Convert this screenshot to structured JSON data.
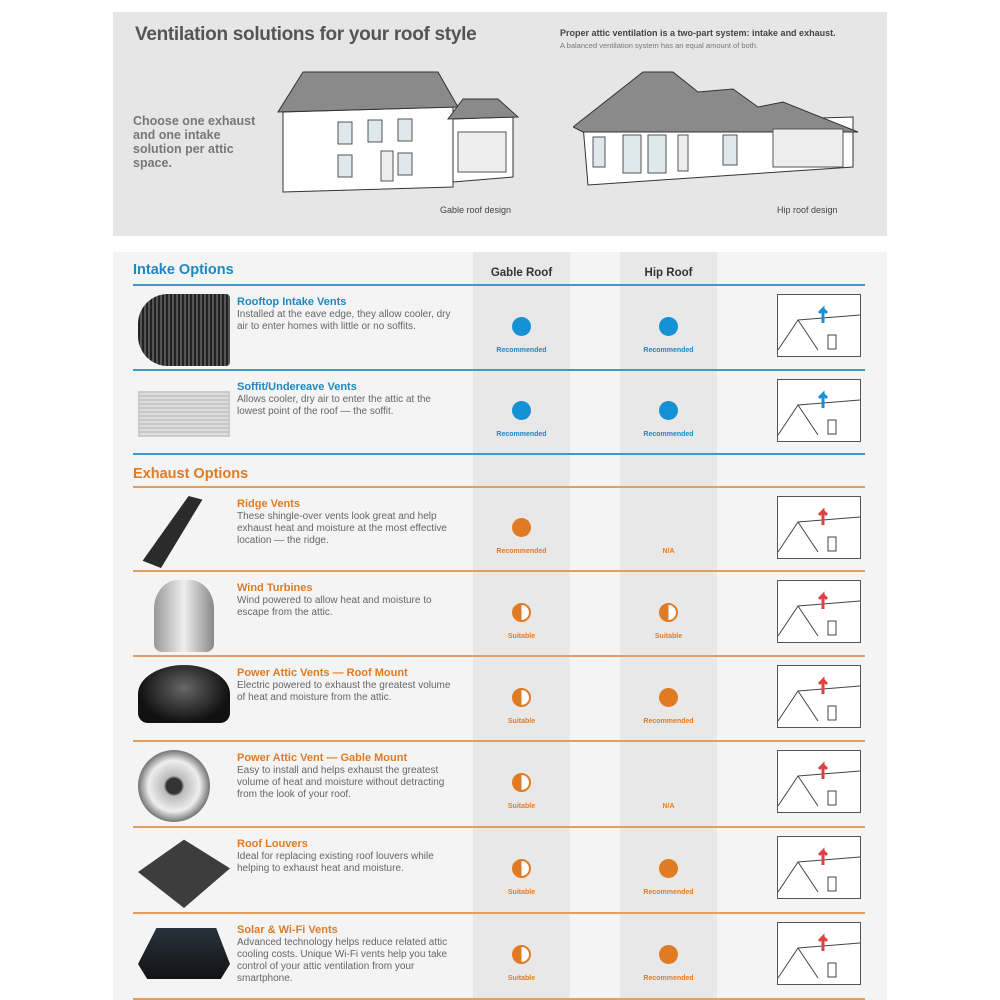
{
  "header": {
    "title": "Ventilation solutions for your roof style",
    "system_line": "Proper attic ventilation is a two-part system: intake and exhaust.",
    "balanced_line": "A balanced ventilation system has an equal amount of both.",
    "choose_text": "Choose one exhaust and one intake solution per attic space.",
    "gable_caption": "Gable roof design",
    "hip_caption": "Hip roof design"
  },
  "columns": {
    "gable": "Gable Roof",
    "hip": "Hip Roof"
  },
  "colors": {
    "intake": "#1e88bf",
    "intake_dot": "#1592d6",
    "exhaust": "#e07b24"
  },
  "intake": {
    "heading": "Intake Options",
    "rows": [
      {
        "title": "Rooftop Intake Vents",
        "desc": "Installed at the eave edge, they allow cooler, dry air to enter homes with little or no soffits.",
        "gable": "recommended",
        "gable_label": "Recommended",
        "hip": "recommended",
        "hip_label": "Recommended",
        "icon": "rooftop-intake-vent-image"
      },
      {
        "title": "Soffit/Undereave Vents",
        "desc": "Allows cooler, dry air to enter the attic at the lowest point of the roof — the soffit.",
        "gable": "recommended",
        "gable_label": "Recommended",
        "hip": "recommended",
        "hip_label": "Recommended",
        "icon": "soffit-vent-image"
      }
    ]
  },
  "exhaust": {
    "heading": "Exhaust Options",
    "rows": [
      {
        "title": "Ridge Vents",
        "desc": "These shingle-over vents look great and help exhaust heat and moisture at the most effective location — the ridge.",
        "gable": "recommended",
        "gable_label": "Recommended",
        "hip": "na",
        "hip_label": "N/A",
        "icon": "ridge-vent-image"
      },
      {
        "title": "Wind Turbines",
        "desc": "Wind powered to allow heat and moisture to escape from the attic.",
        "gable": "suitable",
        "gable_label": "Suitable",
        "hip": "suitable",
        "hip_label": "Suitable",
        "icon": "wind-turbine-image"
      },
      {
        "title": "Power Attic Vents — Roof Mount",
        "desc": "Electric powered to exhaust the greatest volume of heat and moisture from the attic.",
        "gable": "suitable",
        "gable_label": "Suitable",
        "hip": "recommended",
        "hip_label": "Recommended",
        "icon": "roof-mount-vent-image"
      },
      {
        "title": "Power Attic Vent — Gable Mount",
        "desc": "Easy to install and helps exhaust the greatest volume of heat and moisture without detracting from the look of your roof.",
        "gable": "suitable",
        "gable_label": "Suitable",
        "hip": "na",
        "hip_label": "N/A",
        "icon": "gable-mount-fan-image"
      },
      {
        "title": "Roof Louvers",
        "desc": "Ideal for replacing existing roof louvers while helping to exhaust heat and moisture.",
        "gable": "suitable",
        "gable_label": "Suitable",
        "hip": "recommended",
        "hip_label": "Recommended",
        "icon": "roof-louver-image"
      },
      {
        "title": "Solar & Wi-Fi Vents",
        "desc": "Advanced technology helps reduce related attic cooling costs. Unique Wi-Fi vents help you take control of your attic ventilation from your smartphone.",
        "gable": "suitable",
        "gable_label": "Suitable",
        "hip": "recommended",
        "hip_label": "Recommended",
        "icon": "solar-vent-image"
      }
    ]
  }
}
